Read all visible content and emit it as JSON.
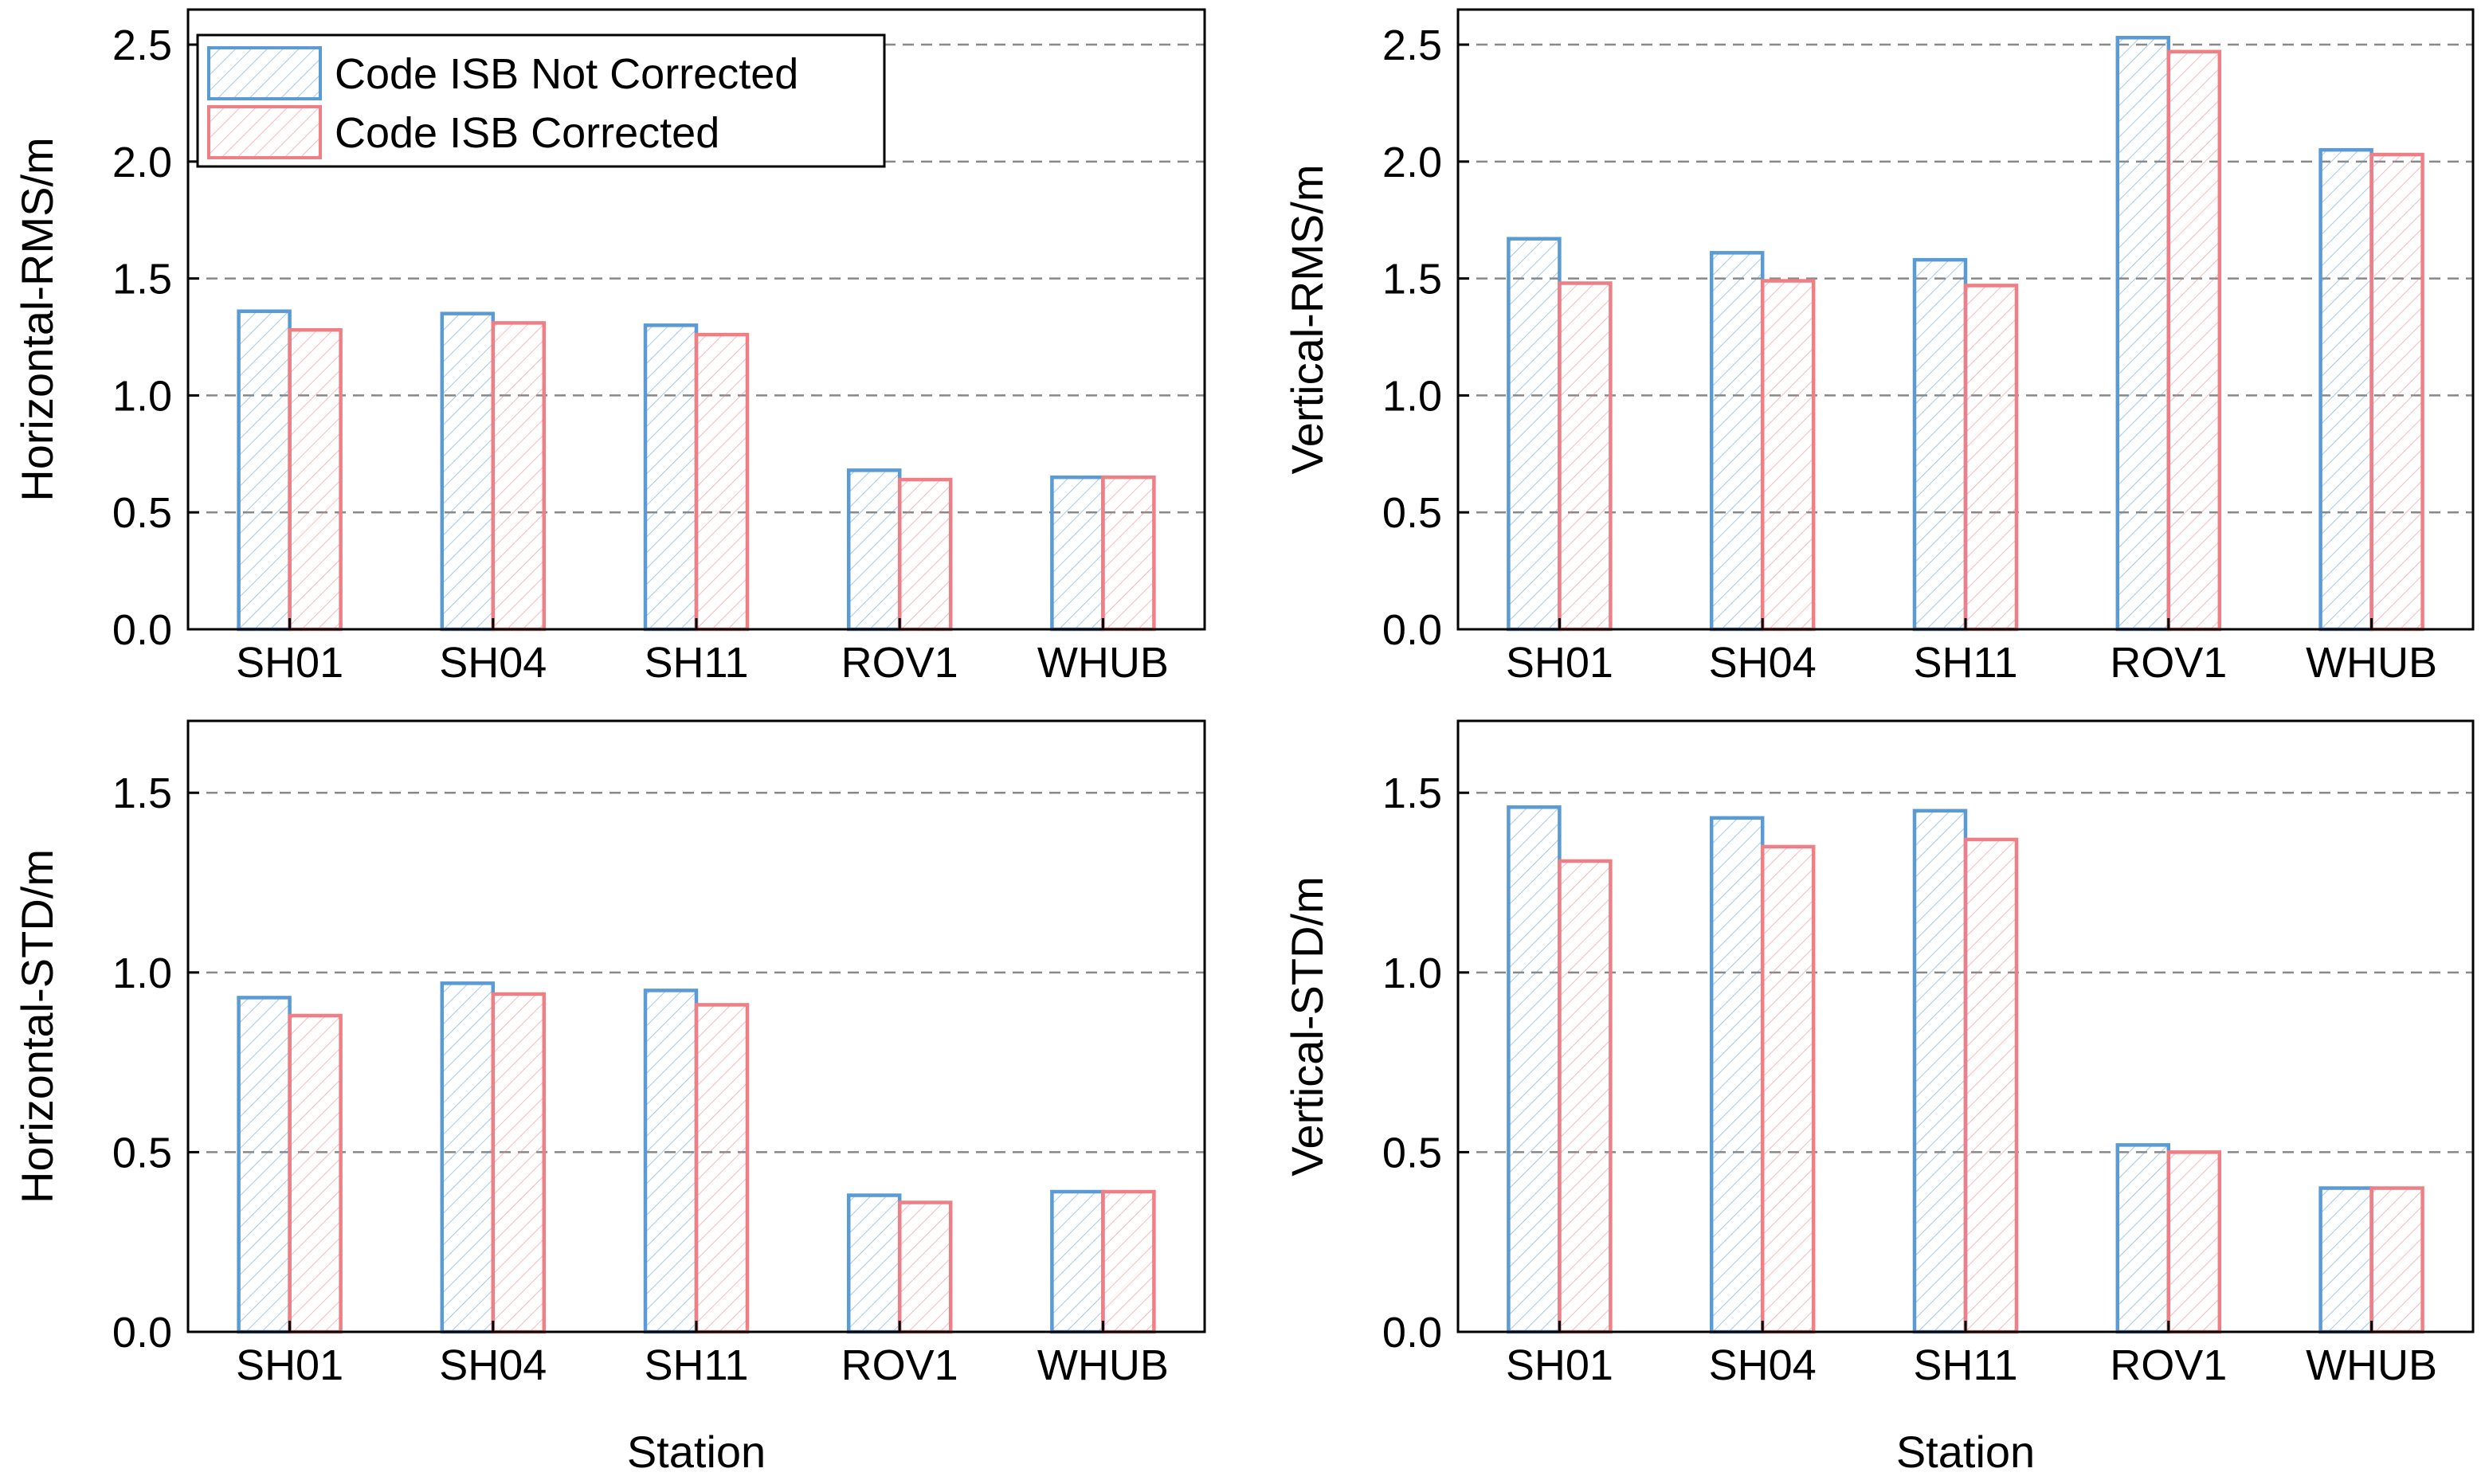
{
  "colors": {
    "not_corrected": "#5B9BD5",
    "corrected": "#F07F85",
    "frame": "#000000",
    "grid": "#888888"
  },
  "legend": {
    "not_corrected": "Code ISB Not Corrected",
    "corrected": "Code ISB Corrected"
  },
  "chart_data": [
    {
      "type": "bar",
      "ylabel": "Horizontal-RMS/m",
      "xlabel": "",
      "categories": [
        "SH01",
        "SH04",
        "SH11",
        "ROV1",
        "WHUB"
      ],
      "ylim": [
        0,
        2.65
      ],
      "yticks": [
        "0.0",
        "0.5",
        "1.0",
        "1.5",
        "2.0",
        "2.5"
      ],
      "grid": "dashed horizontal",
      "legend_position": "top-left",
      "series": [
        {
          "name": "Code ISB Not Corrected",
          "values": [
            1.36,
            1.35,
            1.3,
            0.68,
            0.65
          ]
        },
        {
          "name": "Code ISB Corrected",
          "values": [
            1.28,
            1.31,
            1.26,
            0.64,
            0.65
          ]
        }
      ]
    },
    {
      "type": "bar",
      "ylabel": "Vertical-RMS/m",
      "xlabel": "",
      "categories": [
        "SH01",
        "SH04",
        "SH11",
        "ROV1",
        "WHUB"
      ],
      "ylim": [
        0,
        2.65
      ],
      "yticks": [
        "0.0",
        "0.5",
        "1.0",
        "1.5",
        "2.0",
        "2.5"
      ],
      "grid": "dashed horizontal",
      "series": [
        {
          "name": "Code ISB Not Corrected",
          "values": [
            1.67,
            1.61,
            1.58,
            2.53,
            2.05
          ]
        },
        {
          "name": "Code ISB Corrected",
          "values": [
            1.48,
            1.49,
            1.47,
            2.47,
            2.03
          ]
        }
      ]
    },
    {
      "type": "bar",
      "ylabel": "Horizontal-STD/m",
      "xlabel": "Station",
      "categories": [
        "SH01",
        "SH04",
        "SH11",
        "ROV1",
        "WHUB"
      ],
      "ylim": [
        0,
        1.7
      ],
      "yticks": [
        "0.0",
        "0.5",
        "1.0",
        "1.5"
      ],
      "grid": "dashed horizontal",
      "series": [
        {
          "name": "Code ISB Not Corrected",
          "values": [
            0.93,
            0.97,
            0.95,
            0.38,
            0.39
          ]
        },
        {
          "name": "Code ISB Corrected",
          "values": [
            0.88,
            0.94,
            0.91,
            0.36,
            0.39
          ]
        }
      ]
    },
    {
      "type": "bar",
      "ylabel": "Vertical-STD/m",
      "xlabel": "Station",
      "categories": [
        "SH01",
        "SH04",
        "SH11",
        "ROV1",
        "WHUB"
      ],
      "ylim": [
        0,
        1.7
      ],
      "yticks": [
        "0.0",
        "0.5",
        "1.0",
        "1.5"
      ],
      "grid": "dashed horizontal",
      "series": [
        {
          "name": "Code ISB Not Corrected",
          "values": [
            1.46,
            1.43,
            1.45,
            0.52,
            0.4
          ]
        },
        {
          "name": "Code ISB Corrected",
          "values": [
            1.31,
            1.35,
            1.37,
            0.5,
            0.4
          ]
        }
      ]
    }
  ]
}
